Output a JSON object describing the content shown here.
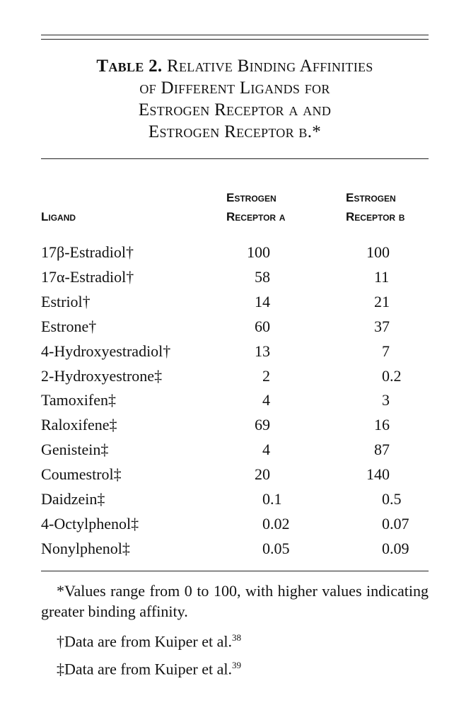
{
  "table": {
    "label": "Table 2.",
    "title_lines": [
      "Relative Binding Affinities",
      "of Different Ligands for",
      "Estrogen Receptor α and",
      "Estrogen Receptor β.*"
    ],
    "headers": {
      "ligand": "Ligand",
      "era_line1": "Estrogen",
      "era_line2": "Receptor α",
      "erb_line1": "Estrogen",
      "erb_line2": "Receptor β"
    },
    "rows": [
      {
        "ligand": "17β-Estradiol†",
        "era": "100",
        "erb": "100"
      },
      {
        "ligand": "17α-Estradiol†",
        "era": "58",
        "erb": "11"
      },
      {
        "ligand": "Estriol†",
        "era": "14",
        "erb": "21"
      },
      {
        "ligand": "Estrone†",
        "era": "60",
        "erb": "37"
      },
      {
        "ligand": "4-Hydroxyestradiol†",
        "era": "13",
        "erb": "7"
      },
      {
        "ligand": "2-Hydroxyestrone‡",
        "era": "2",
        "erb": "0.2"
      },
      {
        "ligand": "Tamoxifen‡",
        "era": "4",
        "erb": "3"
      },
      {
        "ligand": "Raloxifene‡",
        "era": "69",
        "erb": "16"
      },
      {
        "ligand": "Genistein‡",
        "era": "4",
        "erb": "87"
      },
      {
        "ligand": "Coumestrol‡",
        "era": "20",
        "erb": "140"
      },
      {
        "ligand": "Daidzein‡",
        "era": "0.1",
        "erb": "0.5"
      },
      {
        "ligand": "4-Octylphenol‡",
        "era": "0.02",
        "erb": "0.07"
      },
      {
        "ligand": "Nonylphenol‡",
        "era": "0.05",
        "erb": "0.09"
      }
    ],
    "footnotes": [
      "*Values range from 0 to 100, with higher values indicating greater binding affinity.",
      "†Data are from Kuiper et al.",
      "‡Data are from Kuiper et al."
    ],
    "footnote_refs": [
      "38",
      "39"
    ]
  }
}
